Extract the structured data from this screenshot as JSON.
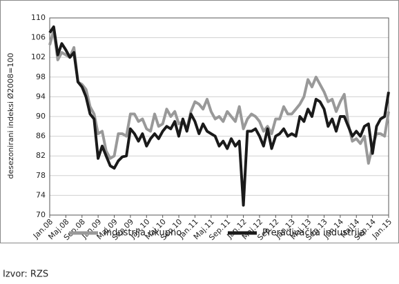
{
  "chart_data": {
    "type": "line",
    "y_label": "desezonirani indeksi Ø2008=100",
    "source": "Izvor: RZS",
    "categories": [
      "Jan.08",
      null,
      null,
      null,
      "Maj.08",
      null,
      null,
      null,
      "Sep.08",
      null,
      null,
      null,
      "Jan.09",
      null,
      null,
      null,
      "Maj.09",
      null,
      null,
      null,
      "Sep.09",
      null,
      null,
      null,
      "Jan.10",
      null,
      null,
      null,
      "Maj.10",
      null,
      null,
      null,
      "Sep.10",
      null,
      null,
      null,
      "Jan.11",
      null,
      null,
      null,
      "Maj.11",
      null,
      null,
      null,
      "Sep.11",
      null,
      null,
      null,
      "Jan.12",
      null,
      null,
      null,
      "Maj.12",
      null,
      null,
      null,
      "Sep.12",
      null,
      null,
      null,
      "Jan.13",
      null,
      null,
      null,
      "Maj.13",
      null,
      null,
      null,
      "Sep.13",
      null,
      null,
      null,
      "Jan.14",
      null,
      null,
      null,
      "Maj14",
      null,
      null,
      null,
      "Sep.14",
      null,
      null,
      null,
      "Jan.15"
    ],
    "series": [
      {
        "name": "Industrija ukupno",
        "color": "#999999",
        "values": [
          104.5,
          107.5,
          101.5,
          103,
          102.5,
          102,
          104,
          97,
          96.5,
          95.5,
          92,
          90.5,
          86.5,
          87,
          83,
          81.5,
          82,
          86.5,
          86.5,
          86,
          90.5,
          90.5,
          89,
          89.5,
          87.5,
          87,
          90.5,
          88,
          88.5,
          91.5,
          90,
          91,
          88.5,
          89,
          87.5,
          91,
          93,
          92.5,
          91.5,
          93.5,
          91,
          89.5,
          90,
          89,
          91,
          90,
          89,
          92,
          87.5,
          89.5,
          90.5,
          90,
          89,
          87,
          88,
          86.5,
          89.5,
          89.5,
          92,
          90.5,
          90.5,
          91.5,
          92.5,
          94,
          97.5,
          96,
          98,
          96.5,
          95,
          93,
          93.5,
          91,
          93,
          94.5,
          88.5,
          85,
          85.5,
          84.5,
          86,
          80.5,
          84,
          86.5,
          86.5,
          86,
          91
        ]
      },
      {
        "name": "Prerađivačka industrija",
        "color": "#1a1a1a",
        "values": [
          107,
          108.2,
          102.5,
          104.8,
          103.5,
          102,
          103,
          97,
          96,
          94,
          90.5,
          89.5,
          81.5,
          84,
          82,
          80,
          79.5,
          81,
          81.8,
          82,
          87.5,
          86.5,
          85,
          86.5,
          84,
          85.5,
          86.5,
          85.5,
          87,
          88,
          87.5,
          89,
          86,
          89.5,
          87,
          90.5,
          89,
          86.5,
          88.5,
          87,
          86.5,
          86,
          84,
          85,
          83.5,
          85.5,
          84,
          85,
          72,
          87,
          87,
          87.5,
          86,
          84,
          87.5,
          83.5,
          86,
          86.5,
          87.5,
          86,
          86.5,
          86,
          90,
          89,
          91.5,
          90,
          93.5,
          93,
          91.5,
          88,
          89.5,
          87,
          90,
          90,
          88,
          86,
          87,
          86,
          88,
          88.5,
          82.5,
          88,
          89.5,
          90,
          95
        ]
      }
    ],
    "ylim": [
      70,
      110
    ],
    "yticks": [
      70,
      74,
      78,
      82,
      86,
      90,
      94,
      98,
      102,
      106,
      110
    ],
    "grid": true
  }
}
